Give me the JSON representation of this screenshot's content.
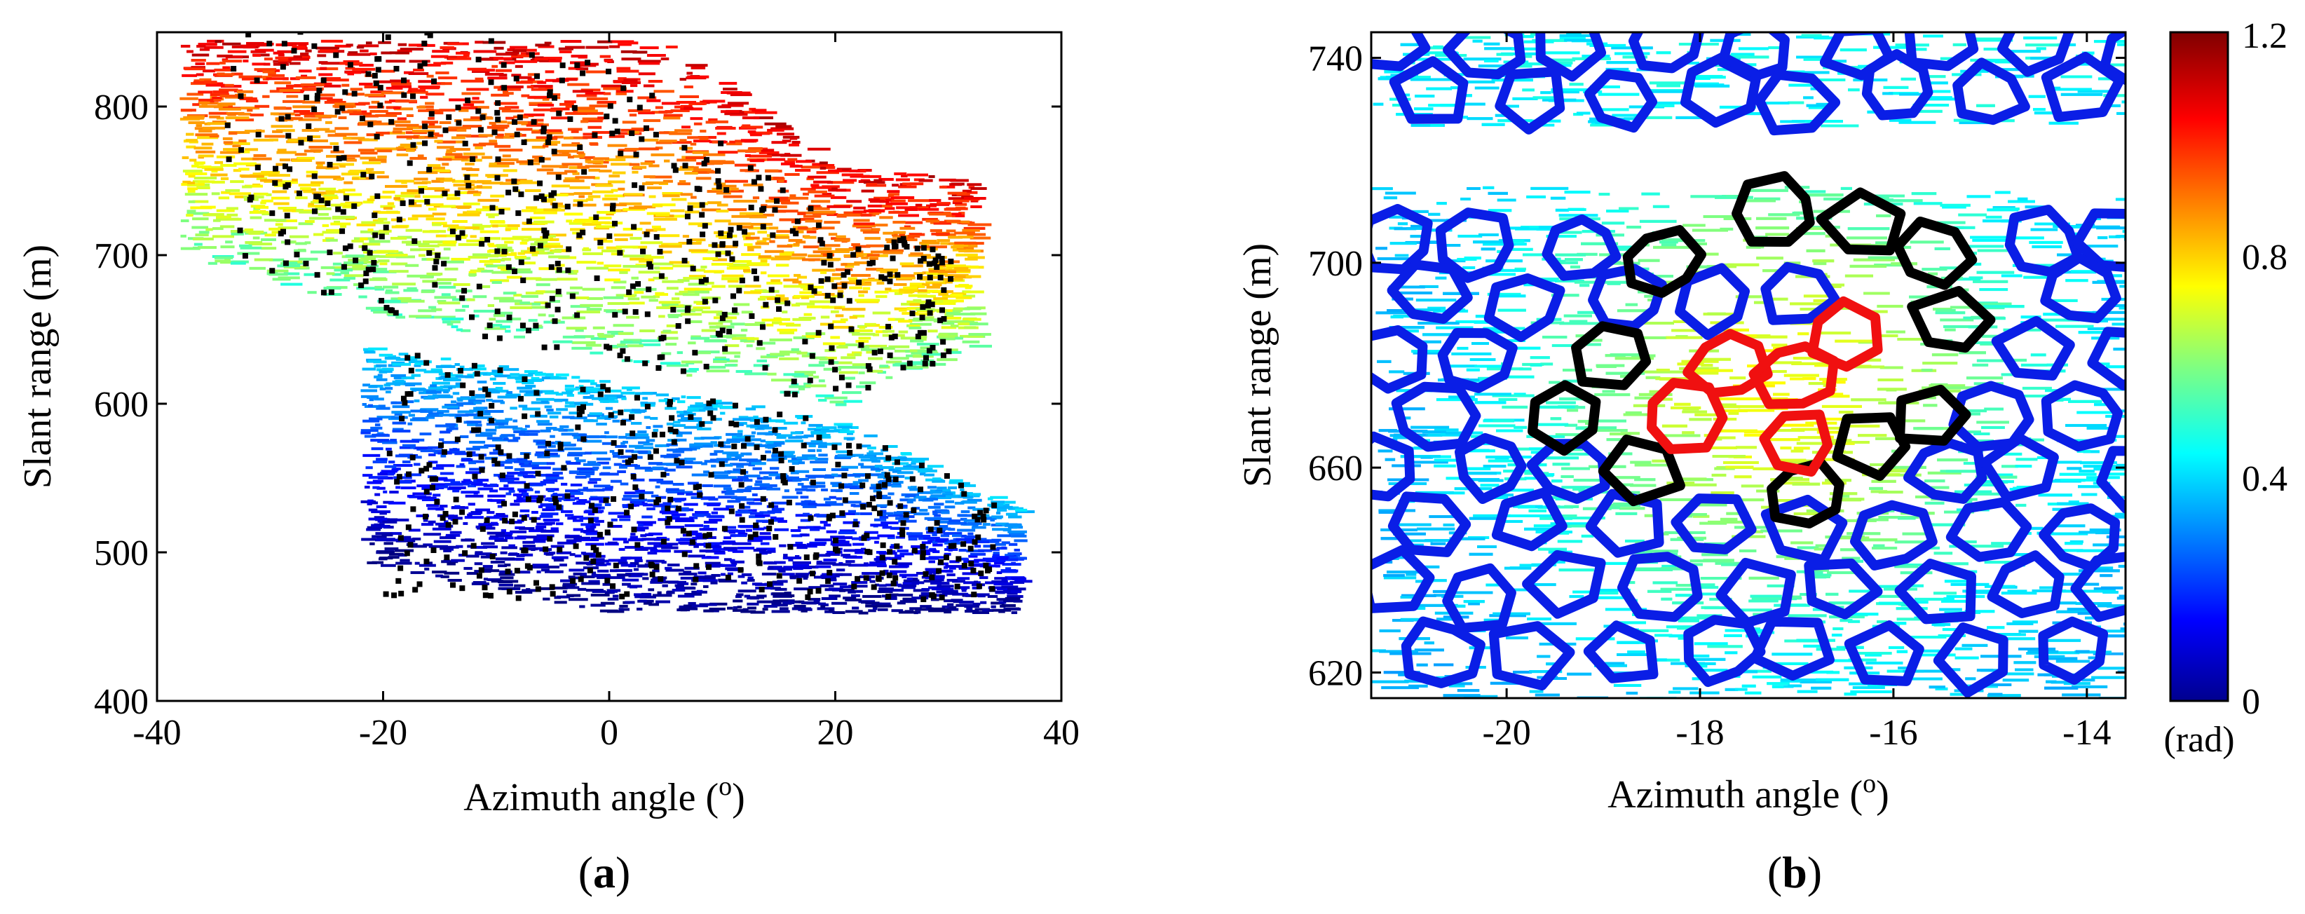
{
  "chart_data": [
    {
      "id": "a",
      "type": "scatter",
      "panel_label": "(a)",
      "panel_letter": "a",
      "xlabel": "Azimuth angle (",
      "xlabel_sup": "o",
      "xlabel_end": ")",
      "ylabel": "Slant range (m)",
      "xlim": [
        -40,
        40
      ],
      "ylim": [
        400,
        850
      ],
      "xticks": [
        -40,
        -20,
        0,
        20,
        40
      ],
      "yticks": [
        400,
        500,
        600,
        700,
        800
      ],
      "colorscale": "jet",
      "color_range_rad": [
        0,
        1.2
      ],
      "color_band_boundary": {
        "azimuth": [
          -36,
          -20,
          -10,
          0,
          10,
          20,
          28
        ],
        "range": [
          740,
          690,
          655,
          630,
          605,
          585,
          575
        ]
      },
      "regions": [
        {
          "name": "upper-scatterers",
          "x_range": [
            -38,
            32
          ],
          "range_top": 845,
          "range_bottom_at": {
            "x": [
              -38,
              -20,
              0,
              20,
              32
            ],
            "y": [
              700,
              660,
              630,
              600,
              640
            ]
          },
          "phase_rad": [
            0.55,
            1.1
          ]
        },
        {
          "name": "lower-scatterers",
          "x_range": [
            -22,
            36
          ],
          "range_top_at": {
            "x": [
              -22,
              0,
              20,
              36
            ],
            "y": [
              640,
              615,
              590,
              530
            ]
          },
          "range_bottom": 460,
          "phase_rad": [
            0.0,
            0.4
          ]
        }
      ],
      "persistent_scatterers": "black square markers (PS candidates)"
    },
    {
      "id": "b",
      "type": "scatter",
      "panel_label": "(b)",
      "panel_letter": "b",
      "xlabel": "Azimuth angle (",
      "xlabel_sup": "o",
      "xlabel_end": ")",
      "ylabel": "Slant range (m)",
      "xlim": [
        -21.4,
        -13.6
      ],
      "ylim": [
        615,
        745
      ],
      "xticks": [
        -20,
        -18,
        -16,
        -14
      ],
      "yticks": [
        620,
        660,
        700,
        740
      ],
      "colorbar": {
        "min": 0,
        "max": 1.2,
        "ticks": [
          "0",
          "0.4",
          "0.8",
          "1.2"
        ],
        "unit": "(rad)"
      },
      "polygon_legend": {
        "blue": "#0a1ee6",
        "black": "#000000",
        "red": "#f01010"
      },
      "red_cells_center": [
        {
          "x": -17.7,
          "y": 680
        },
        {
          "x": -17.0,
          "y": 678
        },
        {
          "x": -16.5,
          "y": 686
        },
        {
          "x": -18.2,
          "y": 670
        },
        {
          "x": -17.0,
          "y": 665
        }
      ],
      "black_cells_center": [
        {
          "x": -17.2,
          "y": 710
        },
        {
          "x": -18.4,
          "y": 700
        },
        {
          "x": -16.3,
          "y": 707
        },
        {
          "x": -15.6,
          "y": 702
        },
        {
          "x": -18.9,
          "y": 682
        },
        {
          "x": -15.4,
          "y": 688
        },
        {
          "x": -19.4,
          "y": 670
        },
        {
          "x": -15.6,
          "y": 670
        },
        {
          "x": -18.6,
          "y": 660
        },
        {
          "x": -16.9,
          "y": 655
        },
        {
          "x": -16.2,
          "y": 665
        }
      ]
    }
  ]
}
